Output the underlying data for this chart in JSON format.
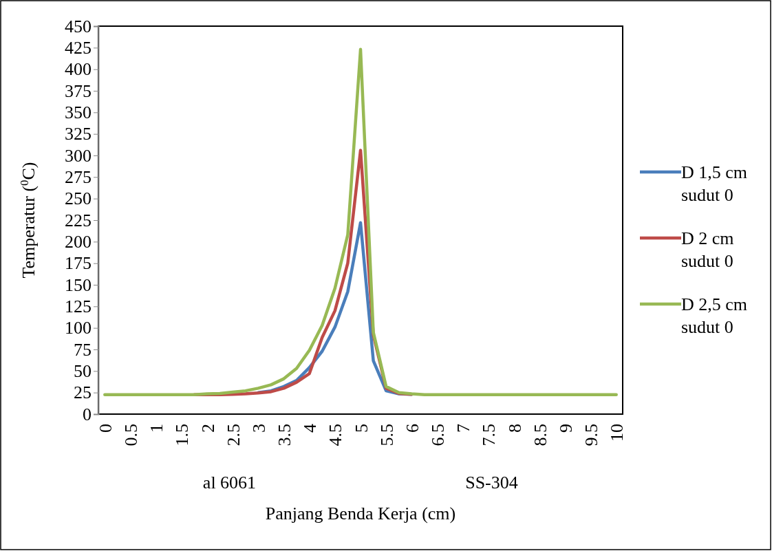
{
  "chart_data": {
    "type": "line",
    "ylabel": "Temperatur ($^{0}$C)",
    "xlabel": "Panjang Benda Kerja (cm)",
    "annotations": [
      "al 6061",
      "SS-304"
    ],
    "x": [
      0,
      0.25,
      0.5,
      0.75,
      1,
      1.25,
      1.5,
      1.75,
      2,
      2.25,
      2.5,
      2.75,
      3,
      3.25,
      3.5,
      3.75,
      4,
      4.25,
      4.5,
      4.75,
      5,
      5.25,
      5.5,
      5.75,
      6,
      6.25,
      6.5,
      6.75,
      7,
      7.25,
      7.5,
      7.75,
      8,
      8.25,
      8.5,
      8.75,
      9,
      9.25,
      9.5,
      9.75,
      10
    ],
    "xlim": [
      -0.125,
      10.125
    ],
    "xticks": [
      0,
      0.5,
      1,
      1.5,
      2,
      2.5,
      3,
      3.5,
      4,
      4.5,
      5,
      5.5,
      6,
      6.5,
      7,
      7.5,
      8,
      8.5,
      9,
      9.5,
      10
    ],
    "ylim": [
      0,
      450
    ],
    "yticks": [
      0,
      25,
      50,
      75,
      100,
      125,
      150,
      175,
      200,
      225,
      250,
      275,
      300,
      325,
      350,
      375,
      400,
      425,
      450
    ],
    "grid": false,
    "legend": "right",
    "marker": "none",
    "line_style": "solid",
    "series": [
      {
        "name": "D 1,5 cm sudut 0",
        "color": "#4a7ebb",
        "values": [
          null,
          null,
          null,
          null,
          null,
          null,
          null,
          null,
          null,
          null,
          null,
          null,
          25,
          27,
          32,
          39,
          54,
          73,
          101,
          142,
          222,
          62,
          27,
          23.5,
          23,
          null,
          null,
          null,
          null,
          null,
          null,
          null,
          null,
          null,
          null,
          null,
          null,
          null,
          null,
          null,
          null
        ]
      },
      {
        "name": "D 2 cm sudut 0",
        "color": "#be4b48",
        "values": [
          null,
          null,
          null,
          null,
          null,
          null,
          null,
          22.5,
          22.5,
          22.5,
          23,
          23.5,
          24.5,
          26,
          30,
          37,
          47,
          89,
          120,
          175,
          306,
          92,
          30,
          24,
          23,
          null,
          null,
          null,
          null,
          null,
          null,
          null,
          null,
          null,
          null,
          null,
          null,
          null,
          null,
          null,
          null
        ]
      },
      {
        "name": "D 2,5 cm sudut 0",
        "color": "#98b954",
        "values": [
          22.5,
          22.5,
          22.5,
          22.5,
          22.5,
          22.5,
          22.5,
          22.5,
          23.5,
          24,
          25.5,
          27,
          30,
          34,
          41,
          53,
          74,
          103,
          146,
          208,
          423,
          95,
          32,
          25,
          23.5,
          22.5,
          22.5,
          22.5,
          22.5,
          22.5,
          22.5,
          22.5,
          22.5,
          22.5,
          22.5,
          22.5,
          22.5,
          22.5,
          22.5,
          22.5,
          22.5
        ]
      }
    ]
  }
}
